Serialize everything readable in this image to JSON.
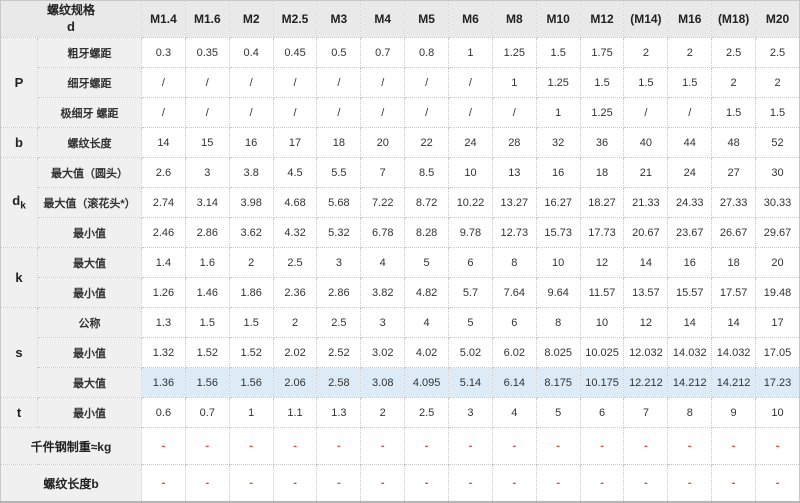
{
  "colors": {
    "header_bg": "#e9e9e9",
    "label_bg": "#f0f0f0",
    "highlight_bg": "#dcebf5",
    "dash_color": "#ee4433",
    "border": "#c9c9c9",
    "text": "#333333"
  },
  "table": {
    "corner_title": "螺纹规格",
    "corner_symbol": "d",
    "columns": [
      "M1.4",
      "M1.6",
      "M2",
      "M2.5",
      "M3",
      "M4",
      "M5",
      "M6",
      "M8",
      "M10",
      "M12",
      "(M14)",
      "M16",
      "(M18)",
      "M20"
    ],
    "groups": [
      {
        "symbol": "P",
        "sub": "",
        "rows": [
          {
            "label": "粗牙螺距",
            "values": [
              "0.3",
              "0.35",
              "0.4",
              "0.45",
              "0.5",
              "0.7",
              "0.8",
              "1",
              "1.25",
              "1.5",
              "1.75",
              "2",
              "2",
              "2.5",
              "2.5"
            ]
          },
          {
            "label": "细牙螺距",
            "values": [
              "/",
              "/",
              "/",
              "/",
              "/",
              "/",
              "/",
              "/",
              "1",
              "1.25",
              "1.5",
              "1.5",
              "1.5",
              "2",
              "2"
            ]
          },
          {
            "label": "极细牙 螺距",
            "values": [
              "/",
              "/",
              "/",
              "/",
              "/",
              "/",
              "/",
              "/",
              "/",
              "1",
              "1.25",
              "/",
              "/",
              "1.5",
              "1.5"
            ]
          }
        ]
      },
      {
        "symbol": "b",
        "sub": "",
        "rows": [
          {
            "label": "螺纹长度",
            "values": [
              "14",
              "15",
              "16",
              "17",
              "18",
              "20",
              "22",
              "24",
              "28",
              "32",
              "36",
              "40",
              "44",
              "48",
              "52"
            ]
          }
        ]
      },
      {
        "symbol": "d",
        "sub": "k",
        "rows": [
          {
            "label": "最大值（圆头）",
            "values": [
              "2.6",
              "3",
              "3.8",
              "4.5",
              "5.5",
              "7",
              "8.5",
              "10",
              "13",
              "16",
              "18",
              "21",
              "24",
              "27",
              "30"
            ]
          },
          {
            "label": "最大值（滚花头*）",
            "values": [
              "2.74",
              "3.14",
              "3.98",
              "4.68",
              "5.68",
              "7.22",
              "8.72",
              "10.22",
              "13.27",
              "16.27",
              "18.27",
              "21.33",
              "24.33",
              "27.33",
              "30.33"
            ]
          },
          {
            "label": "最小值",
            "values": [
              "2.46",
              "2.86",
              "3.62",
              "4.32",
              "5.32",
              "6.78",
              "8.28",
              "9.78",
              "12.73",
              "15.73",
              "17.73",
              "20.67",
              "23.67",
              "26.67",
              "29.67"
            ]
          }
        ]
      },
      {
        "symbol": "k",
        "sub": "",
        "rows": [
          {
            "label": "最大值",
            "values": [
              "1.4",
              "1.6",
              "2",
              "2.5",
              "3",
              "4",
              "5",
              "6",
              "8",
              "10",
              "12",
              "14",
              "16",
              "18",
              "20"
            ]
          },
          {
            "label": "最小值",
            "values": [
              "1.26",
              "1.46",
              "1.86",
              "2.36",
              "2.86",
              "3.82",
              "4.82",
              "5.7",
              "7.64",
              "9.64",
              "11.57",
              "13.57",
              "15.57",
              "17.57",
              "19.48"
            ]
          }
        ]
      },
      {
        "symbol": "s",
        "sub": "",
        "rows": [
          {
            "label": "公称",
            "values": [
              "1.3",
              "1.5",
              "1.5",
              "2",
              "2.5",
              "3",
              "4",
              "5",
              "6",
              "8",
              "10",
              "12",
              "14",
              "14",
              "17"
            ]
          },
          {
            "label": "最小值",
            "values": [
              "1.32",
              "1.52",
              "1.52",
              "2.02",
              "2.52",
              "3.02",
              "4.02",
              "5.02",
              "6.02",
              "8.025",
              "10.025",
              "12.032",
              "14.032",
              "14.032",
              "17.05"
            ]
          },
          {
            "label": "最大值",
            "highlight": true,
            "values": [
              "1.36",
              "1.56",
              "1.56",
              "2.06",
              "2.58",
              "3.08",
              "4.095",
              "5.14",
              "6.14",
              "8.175",
              "10.175",
              "12.212",
              "14.212",
              "14.212",
              "17.23"
            ]
          }
        ]
      },
      {
        "symbol": "t",
        "sub": "",
        "rows": [
          {
            "label": "最小值",
            "values": [
              "0.6",
              "0.7",
              "1",
              "1.1",
              "1.3",
              "2",
              "2.5",
              "3",
              "4",
              "5",
              "6",
              "7",
              "8",
              "9",
              "10"
            ]
          }
        ]
      }
    ],
    "footer_rows": [
      {
        "label": "千件钢制重≈kg",
        "values": [
          "-",
          "-",
          "-",
          "-",
          "-",
          "-",
          "-",
          "-",
          "-",
          "-",
          "-",
          "-",
          "-",
          "-",
          "-"
        ]
      },
      {
        "label": "螺纹长度b",
        "values": [
          "-",
          "-",
          "-",
          "-",
          "-",
          "-",
          "-",
          "-",
          "-",
          "-",
          "-",
          "-",
          "-",
          "-",
          "-"
        ]
      }
    ]
  }
}
